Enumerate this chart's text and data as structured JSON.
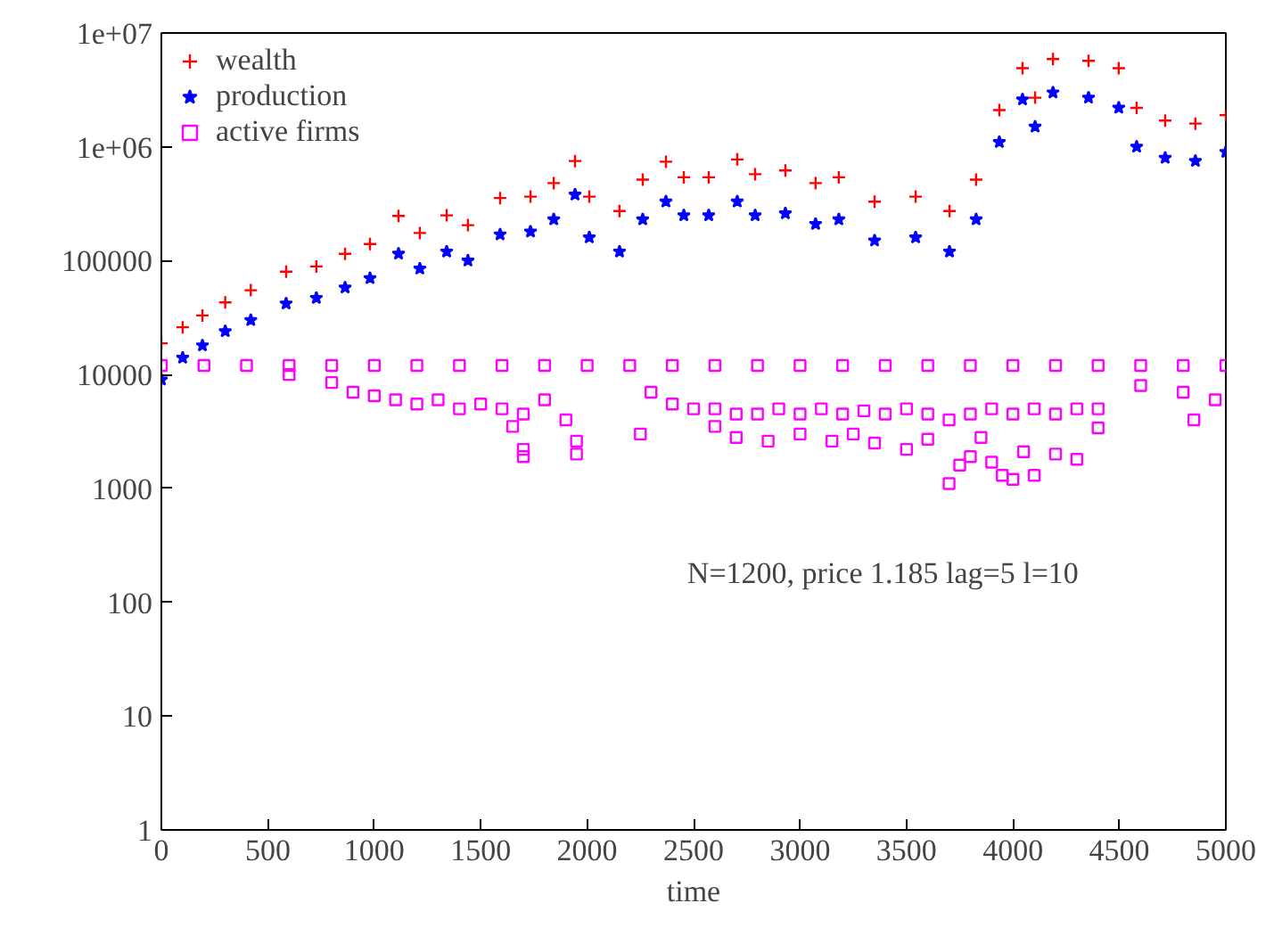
{
  "chart_data": {
    "type": "scatter",
    "xlabel": "time",
    "log": "y",
    "xlim": [
      0,
      5000
    ],
    "ylim": [
      1,
      10000000
    ],
    "xticks": [
      0,
      500,
      1000,
      1500,
      2000,
      2500,
      3000,
      3500,
      4000,
      4500,
      5000
    ],
    "yticks": [
      1,
      10,
      100,
      1000,
      10000,
      100000,
      {
        "value": 1000000,
        "label": "1e+06"
      },
      {
        "value": 10000000,
        "label": "1e+07"
      }
    ],
    "grid": false,
    "legend": "top left",
    "annotations": [
      "N=1200,  price 1.185 lag=5 l=10"
    ],
    "series": [
      {
        "name": "wealth",
        "color": "#ff0000",
        "marker": "cross",
        "x": [
          0,
          100,
          193,
          300,
          420,
          586,
          728,
          863,
          980,
          1114,
          1214,
          1340,
          1440,
          1591,
          1734,
          1843,
          1943,
          2010,
          2152,
          2261,
          2370,
          2454,
          2571,
          2705,
          2789,
          2931,
          3073,
          3182,
          3350,
          3543,
          3702,
          3827,
          3936,
          4045,
          4104,
          4188,
          4355,
          4497,
          4581,
          4715,
          4857,
          5000
        ],
        "values": [
          18800,
          26000,
          33000,
          43000,
          55000,
          80000,
          89000,
          115000,
          140000,
          247000,
          175000,
          250000,
          205000,
          355000,
          365000,
          480000,
          750000,
          365000,
          273000,
          515000,
          740000,
          540000,
          540000,
          775000,
          575000,
          620000,
          480000,
          540000,
          330000,
          365000,
          273000,
          515000,
          2100000,
          4900000,
          2700000,
          5900000,
          5700000,
          4900000,
          2200000,
          1700000,
          1600000,
          1900000
        ]
      },
      {
        "name": "production",
        "color": "#0000ff",
        "marker": "star",
        "x": [
          0,
          100,
          193,
          300,
          420,
          586,
          728,
          863,
          980,
          1114,
          1214,
          1340,
          1440,
          1591,
          1734,
          1843,
          1943,
          2010,
          2152,
          2261,
          2370,
          2454,
          2571,
          2705,
          2789,
          2931,
          3073,
          3182,
          3350,
          3543,
          3702,
          3827,
          3936,
          4045,
          4104,
          4188,
          4355,
          4497,
          4581,
          4715,
          4857,
          5000
        ],
        "values": [
          9000,
          14000,
          18000,
          24000,
          30000,
          42000,
          47000,
          58000,
          70000,
          115000,
          85000,
          120000,
          100000,
          170000,
          180000,
          230000,
          380000,
          160000,
          120000,
          230000,
          330000,
          250000,
          250000,
          330000,
          250000,
          260000,
          210000,
          230000,
          150000,
          160000,
          120000,
          230000,
          1100000,
          2600000,
          1500000,
          3000000,
          2700000,
          2200000,
          1000000,
          800000,
          750000,
          900000
        ]
      },
      {
        "name": "active firms",
        "color": "#ff00ff",
        "marker": "square",
        "x": [
          0,
          200,
          400,
          600,
          800,
          1000,
          1200,
          1400,
          1600,
          1800,
          2000,
          2200,
          2400,
          2600,
          2800,
          3000,
          3200,
          3400,
          3600,
          3800,
          4000,
          4200,
          4400,
          4600,
          4800,
          5000,
          600,
          800,
          900,
          1000,
          1100,
          1200,
          1300,
          1400,
          1500,
          1600,
          1700,
          1800,
          1900,
          2300,
          2400,
          2500,
          2600,
          2700,
          2800,
          2900,
          3000,
          3100,
          3200,
          3300,
          3400,
          3500,
          3600,
          3700,
          3800,
          3900,
          4000,
          4100,
          4200,
          4300,
          4400,
          4600,
          4800,
          4950,
          1650,
          1700,
          1700,
          1950,
          1950,
          2250,
          2600,
          2700,
          2850,
          3000,
          3150,
          3250,
          3350,
          3500,
          3600,
          3700,
          3750,
          3800,
          3850,
          3900,
          3950,
          4000,
          4050,
          4100,
          4200,
          4300,
          4400,
          4850
        ],
        "values": [
          12000,
          12000,
          12000,
          12000,
          12000,
          12000,
          12000,
          12000,
          12000,
          12000,
          12000,
          12000,
          12000,
          12000,
          12000,
          12000,
          12000,
          12000,
          12000,
          12000,
          12000,
          12000,
          12000,
          12000,
          12000,
          12000,
          10000,
          8500,
          7000,
          6500,
          6000,
          5500,
          6000,
          5000,
          5500,
          5000,
          4500,
          6000,
          4000,
          7000,
          5500,
          5000,
          5000,
          4500,
          4500,
          5000,
          4500,
          5000,
          4500,
          4800,
          4500,
          5000,
          4500,
          4000,
          4500,
          5000,
          4500,
          5000,
          4500,
          5000,
          5000,
          8000,
          7000,
          6000,
          3500,
          2200,
          1900,
          2000,
          2600,
          3000,
          3500,
          2800,
          2600,
          3000,
          2600,
          3000,
          2500,
          2200,
          2700,
          1100,
          1600,
          1900,
          2800,
          1700,
          1300,
          1200,
          2100,
          1300,
          2000,
          1800,
          3400,
          4000
        ]
      }
    ]
  }
}
